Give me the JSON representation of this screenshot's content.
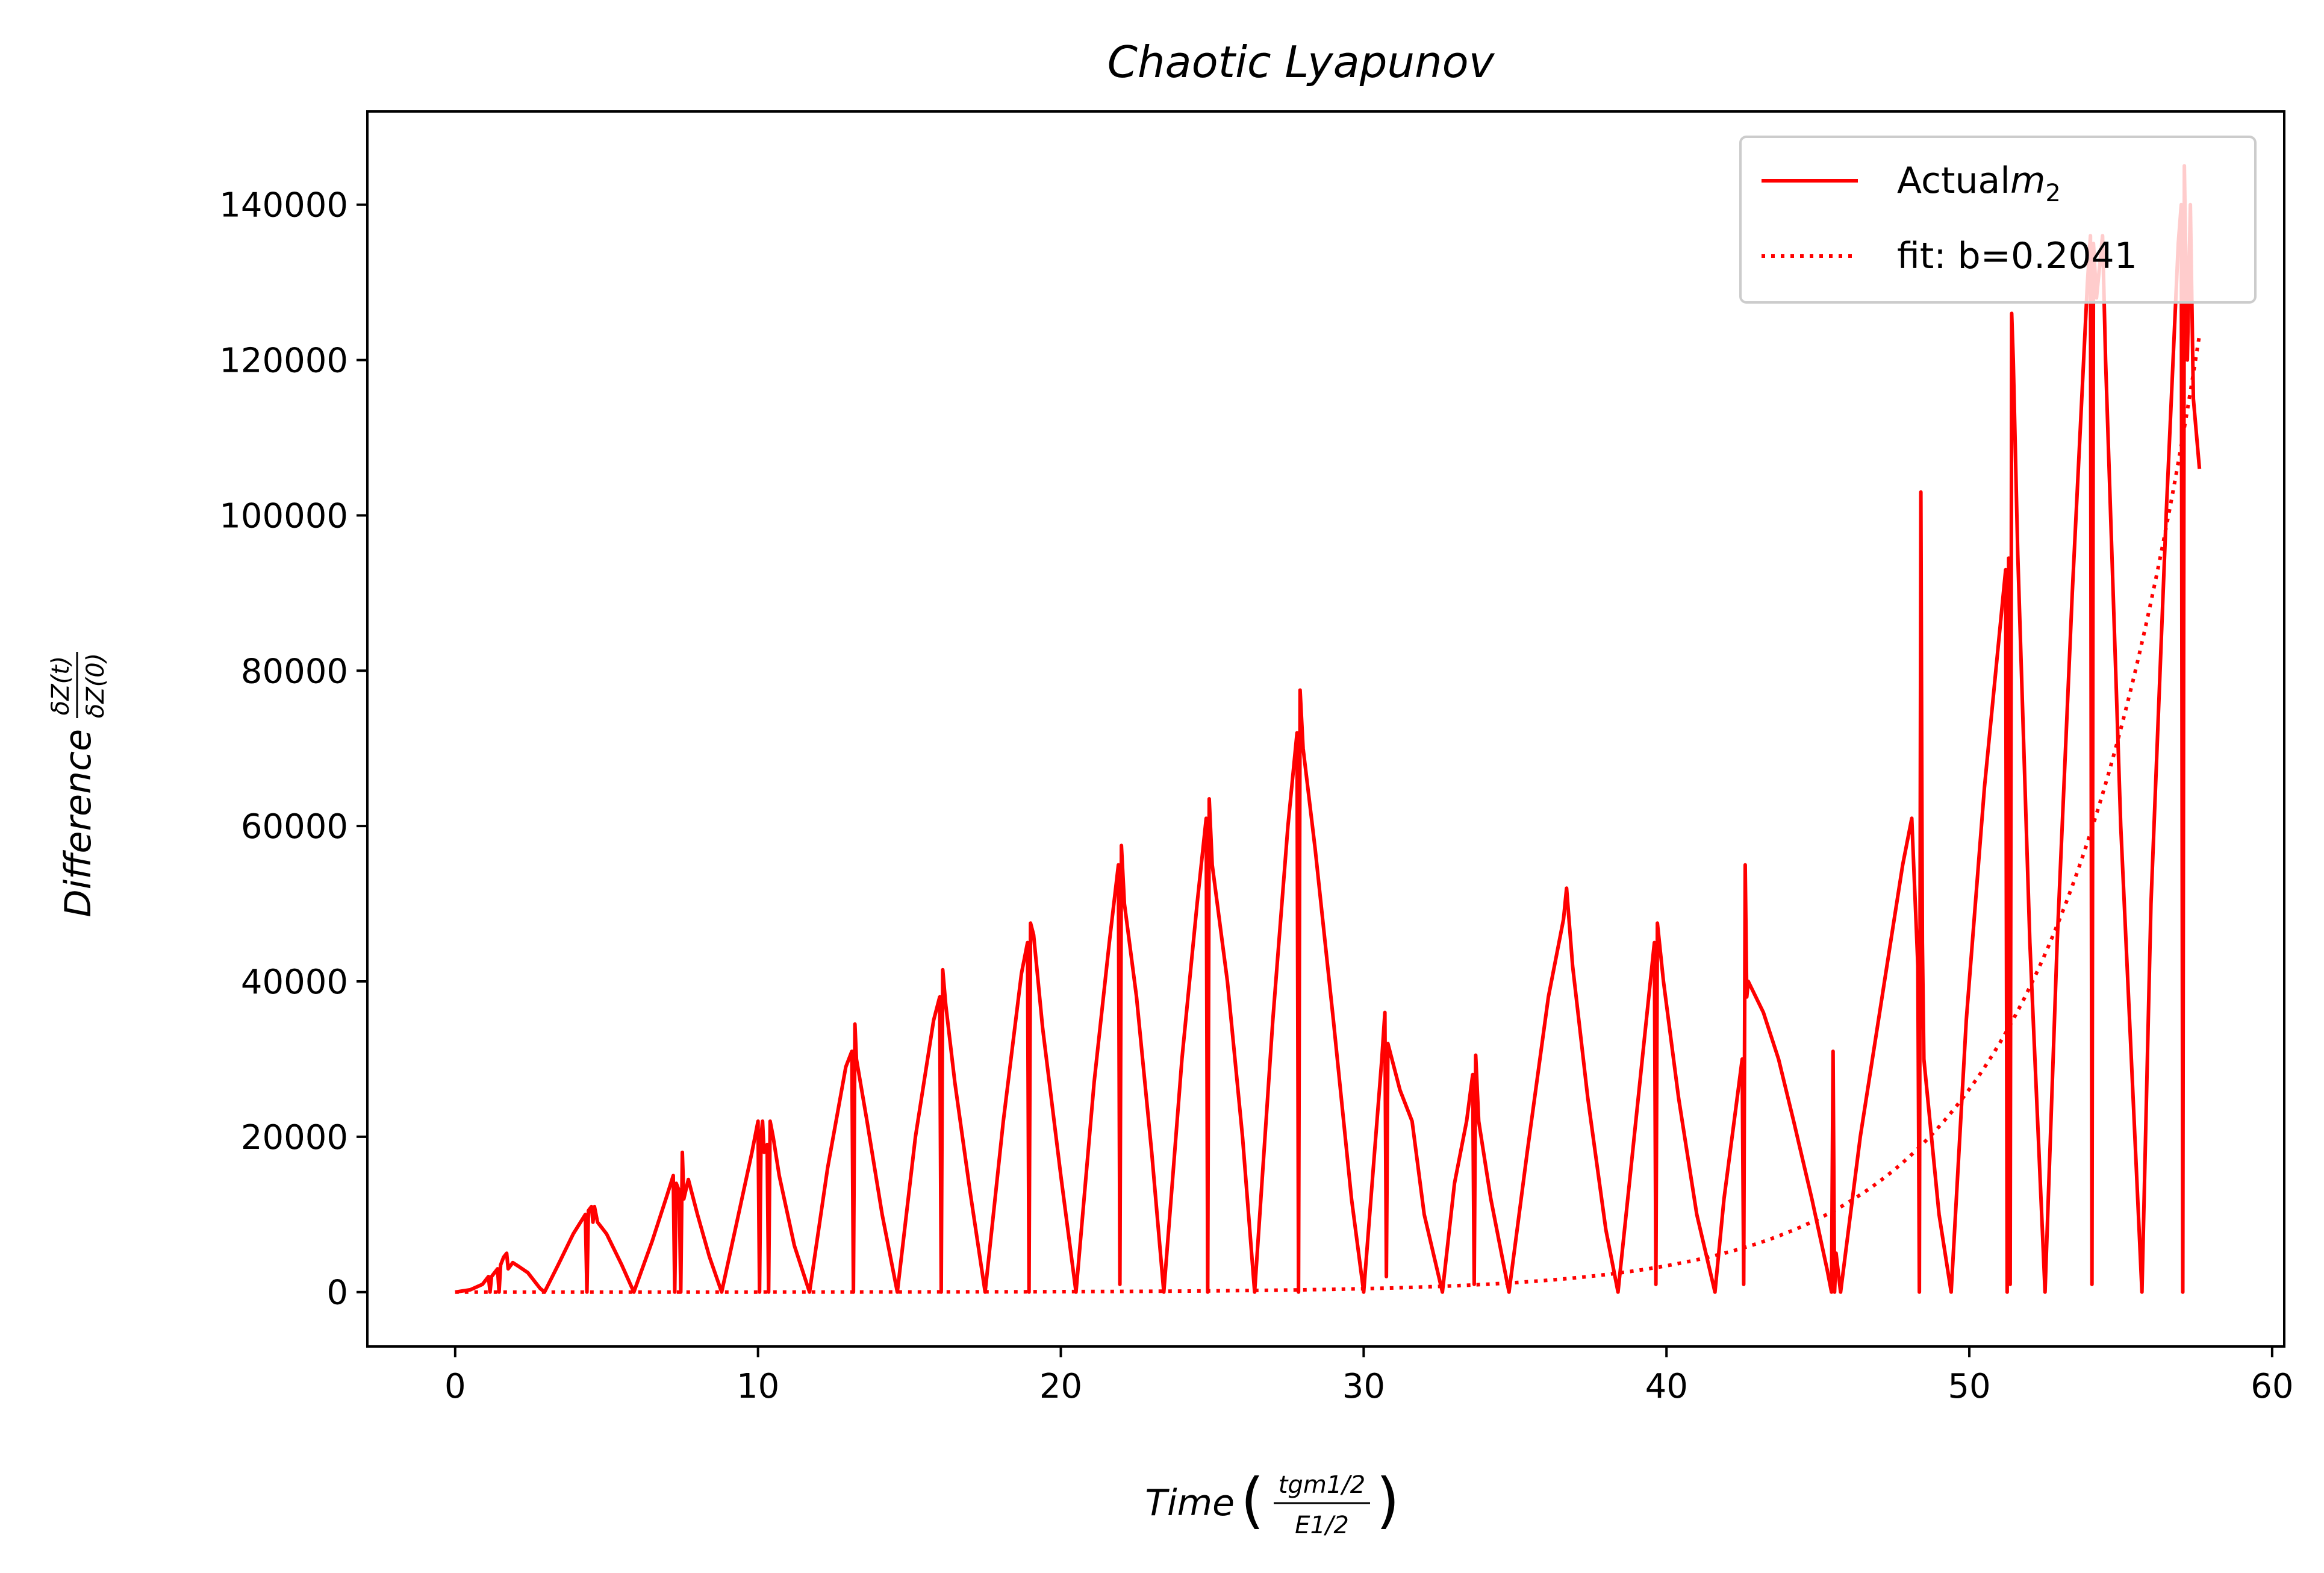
{
  "colors": {
    "series": "#ff0000",
    "axes": "#000000",
    "background": "#ffffff",
    "legend_border": "#cccccc"
  },
  "chart_data": {
    "type": "line",
    "title": "Chaotic Lyapunov",
    "xlabel": "Time",
    "xlabel_fraction": {
      "numerator": "tgm1/2",
      "denominator": "E1/2"
    },
    "ylabel": "Difference",
    "ylabel_fraction": {
      "numerator": "δZ(t)",
      "denominator": "δZ(0)"
    },
    "xlim": [
      -2.9,
      60.4
    ],
    "ylim": [
      -7000,
      152000
    ],
    "xticks": [
      0,
      10,
      20,
      30,
      40,
      50,
      60
    ],
    "yticks": [
      0,
      20000,
      40000,
      60000,
      80000,
      100000,
      120000,
      140000
    ],
    "grid": false,
    "legend": {
      "placement": "top-right"
    },
    "series": [
      {
        "name": "Actual m2",
        "style": "solid",
        "points": [
          [
            0,
            0
          ],
          [
            0.5,
            300
          ],
          [
            0.9,
            1000
          ],
          [
            1.1,
            2000
          ],
          [
            1.15,
            0
          ],
          [
            1.2,
            2000
          ],
          [
            1.4,
            3000
          ],
          [
            1.45,
            0
          ],
          [
            1.5,
            3500
          ],
          [
            1.6,
            4500
          ],
          [
            1.7,
            5000
          ],
          [
            1.75,
            3000
          ],
          [
            1.9,
            3800
          ],
          [
            2.1,
            3300
          ],
          [
            2.4,
            2500
          ],
          [
            2.8,
            500
          ],
          [
            2.95,
            0
          ],
          [
            3.4,
            3500
          ],
          [
            3.9,
            7500
          ],
          [
            4.3,
            10000
          ],
          [
            4.35,
            0
          ],
          [
            4.4,
            10500
          ],
          [
            4.5,
            11000
          ],
          [
            4.55,
            9000
          ],
          [
            4.6,
            11000
          ],
          [
            4.7,
            9000
          ],
          [
            5.0,
            7500
          ],
          [
            5.5,
            3500
          ],
          [
            5.9,
            0
          ],
          [
            6.5,
            6500
          ],
          [
            7.0,
            12500
          ],
          [
            7.2,
            15000
          ],
          [
            7.25,
            0
          ],
          [
            7.3,
            14000
          ],
          [
            7.4,
            13000
          ],
          [
            7.45,
            0
          ],
          [
            7.5,
            18000
          ],
          [
            7.55,
            12000
          ],
          [
            7.7,
            14500
          ],
          [
            8.0,
            10000
          ],
          [
            8.4,
            4500
          ],
          [
            8.8,
            0
          ],
          [
            9.3,
            9000
          ],
          [
            9.8,
            18000
          ],
          [
            10.0,
            22000
          ],
          [
            10.05,
            0
          ],
          [
            10.1,
            20000
          ],
          [
            10.15,
            22000
          ],
          [
            10.2,
            18000
          ],
          [
            10.3,
            19000
          ],
          [
            10.35,
            0
          ],
          [
            10.4,
            22000
          ],
          [
            10.5,
            20000
          ],
          [
            10.7,
            15000
          ],
          [
            11.2,
            6000
          ],
          [
            11.7,
            0
          ],
          [
            12.3,
            16000
          ],
          [
            12.9,
            29000
          ],
          [
            13.1,
            31000
          ],
          [
            13.15,
            0
          ],
          [
            13.2,
            34500
          ],
          [
            13.25,
            30000
          ],
          [
            13.6,
            22000
          ],
          [
            14.1,
            10000
          ],
          [
            14.6,
            0
          ],
          [
            15.2,
            20000
          ],
          [
            15.8,
            35000
          ],
          [
            16.0,
            38000
          ],
          [
            16.05,
            0
          ],
          [
            16.1,
            41500
          ],
          [
            16.2,
            37000
          ],
          [
            16.5,
            27000
          ],
          [
            17.0,
            13000
          ],
          [
            17.5,
            0
          ],
          [
            18.1,
            22000
          ],
          [
            18.7,
            41000
          ],
          [
            18.9,
            45000
          ],
          [
            18.95,
            0
          ],
          [
            19.0,
            47500
          ],
          [
            19.1,
            46000
          ],
          [
            19.4,
            34000
          ],
          [
            20.0,
            15000
          ],
          [
            20.5,
            0
          ],
          [
            21.1,
            27000
          ],
          [
            21.6,
            45000
          ],
          [
            21.9,
            55000
          ],
          [
            21.95,
            1000
          ],
          [
            22.0,
            57500
          ],
          [
            22.1,
            50000
          ],
          [
            22.5,
            38000
          ],
          [
            23.0,
            18000
          ],
          [
            23.4,
            0
          ],
          [
            24.0,
            30000
          ],
          [
            24.5,
            50000
          ],
          [
            24.8,
            61000
          ],
          [
            24.85,
            0
          ],
          [
            24.9,
            63500
          ],
          [
            25.0,
            55000
          ],
          [
            25.5,
            40000
          ],
          [
            26.0,
            20000
          ],
          [
            26.4,
            0
          ],
          [
            27.0,
            35000
          ],
          [
            27.5,
            60000
          ],
          [
            27.8,
            72000
          ],
          [
            27.85,
            0
          ],
          [
            27.9,
            77500
          ],
          [
            28.0,
            70000
          ],
          [
            28.4,
            57000
          ],
          [
            29.0,
            35000
          ],
          [
            29.6,
            12000
          ],
          [
            30.0,
            0
          ],
          [
            30.3,
            15000
          ],
          [
            30.6,
            30000
          ],
          [
            30.7,
            36000
          ],
          [
            30.75,
            2000
          ],
          [
            30.8,
            32000
          ],
          [
            31.2,
            26000
          ],
          [
            31.6,
            22000
          ],
          [
            32.0,
            10000
          ],
          [
            32.6,
            0
          ],
          [
            33.0,
            14000
          ],
          [
            33.4,
            22000
          ],
          [
            33.6,
            28000
          ],
          [
            33.65,
            1000
          ],
          [
            33.7,
            30500
          ],
          [
            33.8,
            22000
          ],
          [
            34.2,
            12000
          ],
          [
            34.8,
            0
          ],
          [
            35.4,
            18000
          ],
          [
            36.1,
            38000
          ],
          [
            36.6,
            48000
          ],
          [
            36.7,
            52000
          ],
          [
            36.9,
            42000
          ],
          [
            37.4,
            25000
          ],
          [
            38.0,
            8000
          ],
          [
            38.4,
            0
          ],
          [
            38.8,
            15000
          ],
          [
            39.2,
            30000
          ],
          [
            39.6,
            45000
          ],
          [
            39.65,
            1000
          ],
          [
            39.7,
            47500
          ],
          [
            39.9,
            40000
          ],
          [
            40.4,
            25000
          ],
          [
            41.0,
            10000
          ],
          [
            41.6,
            0
          ],
          [
            41.9,
            12000
          ],
          [
            42.3,
            24000
          ],
          [
            42.5,
            30000
          ],
          [
            42.55,
            1000
          ],
          [
            42.6,
            55000
          ],
          [
            42.65,
            38000
          ],
          [
            42.7,
            40000
          ],
          [
            43.2,
            36000
          ],
          [
            43.7,
            30000
          ],
          [
            44.2,
            22000
          ],
          [
            44.8,
            12000
          ],
          [
            45.3,
            3000
          ],
          [
            45.45,
            0
          ],
          [
            45.5,
            31000
          ],
          [
            45.55,
            0
          ],
          [
            45.6,
            5000
          ],
          [
            45.75,
            0
          ],
          [
            46.4,
            20000
          ],
          [
            47.2,
            40000
          ],
          [
            47.8,
            55000
          ],
          [
            48.1,
            61000
          ],
          [
            48.3,
            42000
          ],
          [
            48.35,
            0
          ],
          [
            48.4,
            103000
          ],
          [
            48.45,
            45000
          ],
          [
            48.5,
            30000
          ],
          [
            49.0,
            10000
          ],
          [
            49.4,
            0
          ],
          [
            49.9,
            35000
          ],
          [
            50.5,
            65000
          ],
          [
            51.2,
            93000
          ],
          [
            51.25,
            0
          ],
          [
            51.3,
            94500
          ],
          [
            51.35,
            1000
          ],
          [
            51.4,
            126000
          ],
          [
            51.45,
            120000
          ],
          [
            51.6,
            95000
          ],
          [
            52.0,
            45000
          ],
          [
            52.5,
            0
          ],
          [
            52.9,
            45000
          ],
          [
            53.4,
            90000
          ],
          [
            53.9,
            130000
          ],
          [
            54.0,
            136000
          ],
          [
            54.05,
            1000
          ],
          [
            54.1,
            135000
          ],
          [
            54.2,
            128000
          ],
          [
            54.4,
            136000
          ],
          [
            54.5,
            120000
          ],
          [
            55.0,
            60000
          ],
          [
            55.7,
            0
          ],
          [
            56.0,
            50000
          ],
          [
            56.5,
            100000
          ],
          [
            56.9,
            135000
          ],
          [
            57.0,
            140000
          ],
          [
            57.05,
            0
          ],
          [
            57.1,
            145000
          ],
          [
            57.2,
            120000
          ],
          [
            57.3,
            140000
          ],
          [
            57.4,
            115000
          ],
          [
            57.6,
            106000
          ]
        ]
      },
      {
        "name": "fit: b=0.2041",
        "style": "dotted",
        "function": "a*exp(b*x)",
        "b": 0.2041,
        "a": 0.966,
        "points": [
          [
            0,
            1
          ],
          [
            10,
            7.4
          ],
          [
            20,
            57
          ],
          [
            30,
            440
          ],
          [
            35,
            1220
          ],
          [
            40,
            3400
          ],
          [
            42,
            5130
          ],
          [
            44,
            7710
          ],
          [
            46,
            11600
          ],
          [
            48,
            17400
          ],
          [
            50,
            26100
          ],
          [
            52,
            39300
          ],
          [
            54,
            59200
          ],
          [
            55,
            72500
          ],
          [
            56,
            88900
          ],
          [
            57,
            109000
          ],
          [
            57.6,
            123000
          ]
        ]
      }
    ]
  }
}
